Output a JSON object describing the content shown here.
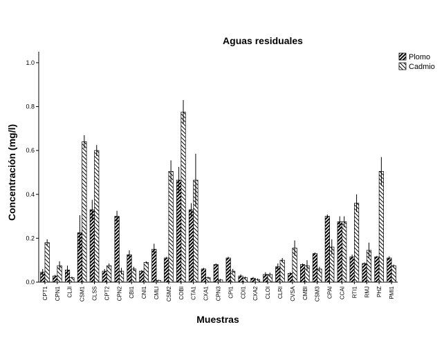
{
  "chart_data": {
    "type": "bar",
    "title": "Aguas residuales",
    "xlabel": "Muestras",
    "ylabel": "Concentración (mg/l)",
    "ylim": [
      0,
      1.05
    ],
    "yticks": [
      "0.0",
      "0.2",
      "0.4",
      "0.6",
      "0.8",
      "1.0"
    ],
    "legend_position": "top-right",
    "error_bars": true,
    "categories": [
      "CPT1",
      "CPN1",
      "CLJI",
      "CSM1",
      "CLSS",
      "CPT2",
      "CPN2",
      "CBI1",
      "CNI1",
      "CMLI",
      "CSM2",
      "COBI",
      "CTA1",
      "CXA1",
      "CPN3",
      "CPI1",
      "CDI1",
      "CXA2",
      "CLOI",
      "CLRI",
      "CVSA",
      "CMBI",
      "CSM3",
      "CPAI",
      "CCAI",
      "RTI1",
      "RMJ",
      "PHZ",
      "PMI1"
    ],
    "series": [
      {
        "name": "Plomo",
        "pattern": "backslash-hatch-dense",
        "values": [
          0.045,
          0.028,
          0.055,
          0.225,
          0.33,
          0.05,
          0.3,
          0.125,
          0.05,
          0.15,
          0.11,
          0.465,
          0.33,
          0.06,
          0.08,
          0.11,
          0.028,
          0.018,
          0.035,
          0.07,
          0.04,
          0.08,
          0.13,
          0.3,
          0.275,
          0.115,
          0.085,
          0.115,
          0.11
        ],
        "errors": [
          0.015,
          0.005,
          0.02,
          0.08,
          0.045,
          0.01,
          0.025,
          0.02,
          0.005,
          0.025,
          0.005,
          0.06,
          0.03,
          0.005,
          0.005,
          0.005,
          0.007,
          0.005,
          0.01,
          0.015,
          0.005,
          0.005,
          0.005,
          0.008,
          0.025,
          0.01,
          0.005,
          0.005,
          0.008
        ]
      },
      {
        "name": "Cadmio",
        "pattern": "slash-hatch-light",
        "values": [
          0.18,
          0.075,
          0.02,
          0.64,
          0.6,
          0.075,
          0.05,
          0.06,
          0.09,
          0.008,
          0.505,
          0.775,
          0.465,
          0.02,
          0.01,
          0.05,
          0.02,
          0.012,
          0.035,
          0.1,
          0.155,
          0.075,
          0.06,
          0.16,
          0.275,
          0.36,
          0.145,
          0.505,
          0.075
        ],
        "errors": [
          0.015,
          0.02,
          0.005,
          0.03,
          0.025,
          0.01,
          0.015,
          0.01,
          0.005,
          0.003,
          0.05,
          0.055,
          0.12,
          0.005,
          0.005,
          0.01,
          0.005,
          0.005,
          0.008,
          0.01,
          0.035,
          0.025,
          0.01,
          0.035,
          0.025,
          0.04,
          0.035,
          0.065,
          0.005
        ]
      }
    ]
  }
}
